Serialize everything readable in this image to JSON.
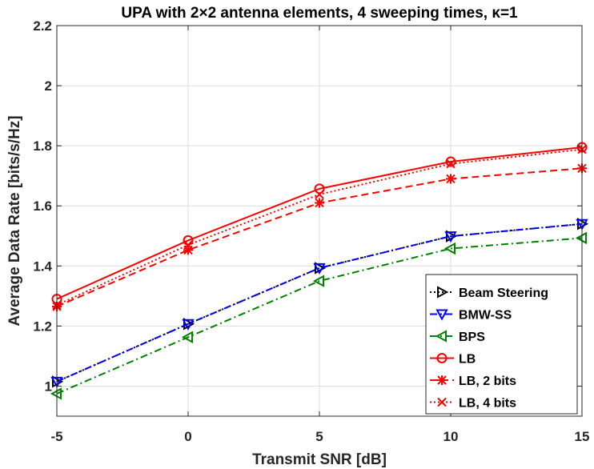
{
  "chart_data": {
    "type": "line",
    "title": "UPA with 2×2 antenna elements, 4 sweeping times, κ=1",
    "xlabel": "Transmit SNR [dB]",
    "ylabel": "Average Data Rate [bits/s/Hz]",
    "x": [
      -5,
      0,
      5,
      10,
      15
    ],
    "xlim": [
      -5,
      15
    ],
    "ylim": [
      0.9,
      2.2
    ],
    "xticks": [
      -5,
      0,
      5,
      10,
      15
    ],
    "yticks": [
      1,
      1.2,
      1.4,
      1.6,
      1.8,
      2,
      2.2
    ],
    "xtick_labels": [
      "-5",
      "0",
      "5",
      "10",
      "15"
    ],
    "ytick_labels": [
      "1",
      "1.2",
      "1.4",
      "1.6",
      "1.8",
      "2",
      "2.2"
    ],
    "grid": true,
    "legend_position": "bottom-right",
    "series": [
      {
        "name": "Beam Steering",
        "values": [
          1.015,
          1.207,
          1.393,
          1.499,
          1.54
        ],
        "color": "#000000",
        "dash": "dotted",
        "marker": "triangle-right"
      },
      {
        "name": "BMW-SS",
        "values": [
          1.015,
          1.207,
          1.393,
          1.499,
          1.54
        ],
        "color": "#0000ff",
        "dash": "dashdot",
        "marker": "triangle-down"
      },
      {
        "name": "BPS",
        "values": [
          0.975,
          1.163,
          1.35,
          1.458,
          1.493
        ],
        "color": "#008000",
        "dash": "dashdot",
        "marker": "triangle-left"
      },
      {
        "name": "LB",
        "values": [
          1.29,
          1.485,
          1.657,
          1.747,
          1.795
        ],
        "color": "#ff0000",
        "dash": "solid",
        "marker": "circle"
      },
      {
        "name": "LB, 2 bits",
        "values": [
          1.265,
          1.453,
          1.61,
          1.69,
          1.725
        ],
        "color": "#ff0000",
        "dash": "dashed",
        "marker": "asterisk"
      },
      {
        "name": "LB, 4 bits",
        "values": [
          1.27,
          1.47,
          1.638,
          1.74,
          1.788
        ],
        "color": "#ff0000",
        "dash": "dotted",
        "marker": "x"
      }
    ]
  }
}
